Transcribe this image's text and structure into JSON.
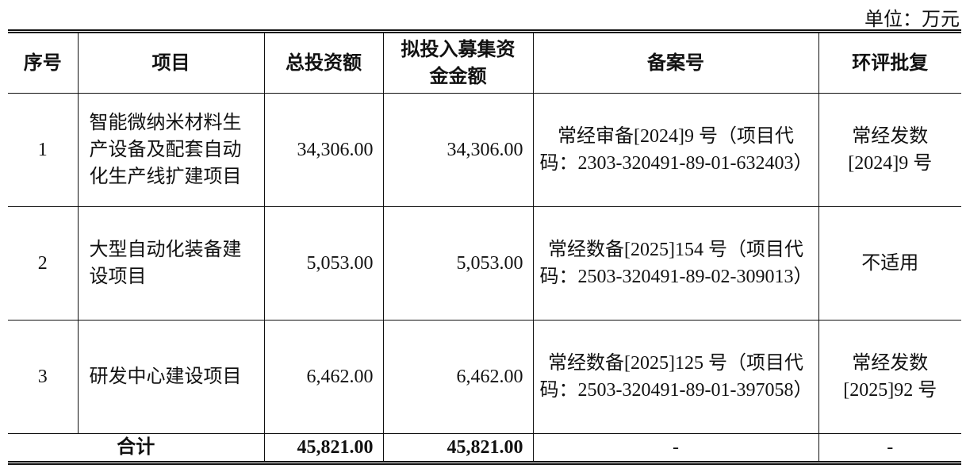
{
  "unit_label": "单位：万元",
  "headers": [
    "序号",
    "项目",
    "总投资额",
    "拟投入募集资金金额",
    "备案号",
    "环评批复"
  ],
  "rows": [
    {
      "no": "1",
      "project": "智能微纳米材料生产设备及配套自动化生产线扩建项目",
      "total": "34,306.00",
      "raised": "34,306.00",
      "filing": "常经审备[2024]9 号（项目代码：2303-320491-89-01-632403）",
      "eia": "常经发数[2024]9 号"
    },
    {
      "no": "2",
      "project": "大型自动化装备建设项目",
      "total": "5,053.00",
      "raised": "5,053.00",
      "filing": "常经数备[2025]154 号（项目代码：2503-320491-89-02-309013）",
      "eia": "不适用"
    },
    {
      "no": "3",
      "project": "研发中心建设项目",
      "total": "6,462.00",
      "raised": "6,462.00",
      "filing": "常经数备[2025]125 号（项目代码：2503-320491-89-01-397058）",
      "eia": "常经发数[2025]92 号"
    }
  ],
  "total_row": {
    "label": "合计",
    "total": "45,821.00",
    "raised": "45,821.00",
    "filing": "-",
    "eia": "-"
  }
}
